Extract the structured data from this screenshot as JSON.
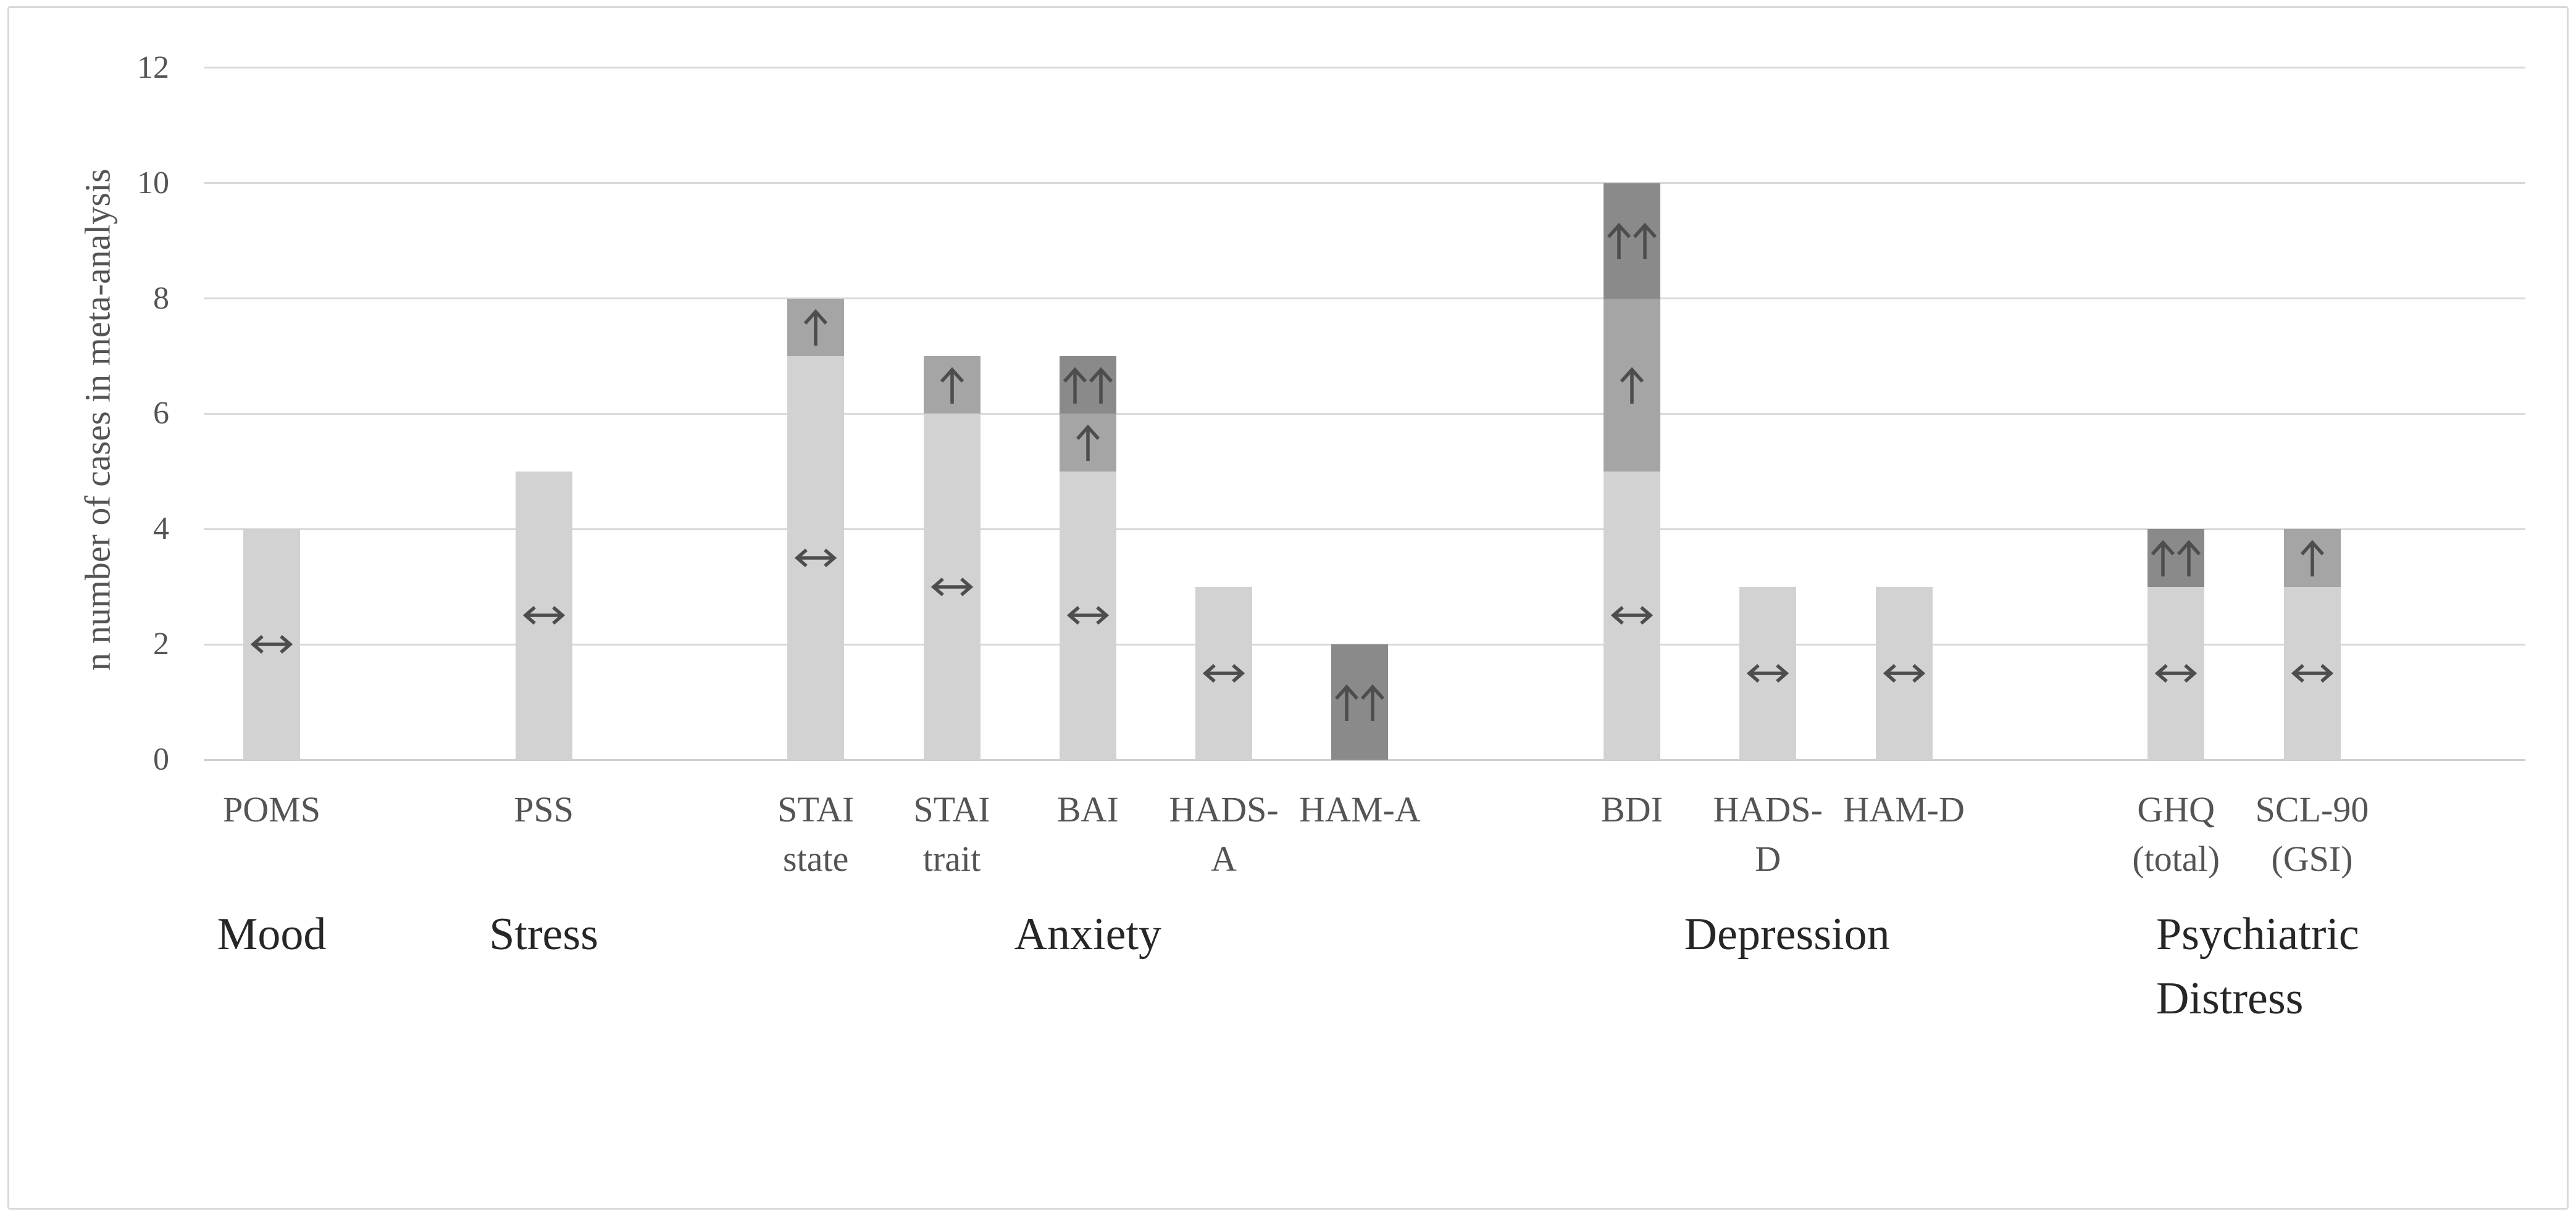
{
  "figure": {
    "background": "#ffffff",
    "border_color": "#d9d9d9"
  },
  "chart_data": {
    "type": "bar",
    "subtype": "stacked-vertical",
    "title": "",
    "xlabel": "",
    "ylabel": "n number of cases in meta-analysis",
    "ylim": [
      0,
      12
    ],
    "ytick_step": 2,
    "yticks": [
      0,
      2,
      4,
      6,
      8,
      10,
      12
    ],
    "grid": true,
    "legend_position": "none",
    "slot_count": 16,
    "levels": [
      {
        "id": "no_change",
        "symbol": "↔",
        "icon": "left-right-arrow-icon",
        "color": "#d2d2d2"
      },
      {
        "id": "increase",
        "symbol": "↑",
        "icon": "up-arrow-icon",
        "color": "#a5a5a5"
      },
      {
        "id": "strong_increase",
        "symbol": "↑↑",
        "icon": "double-up-arrow-icon",
        "color": "#8a8a8a"
      }
    ],
    "bars": [
      {
        "label": "POMS",
        "label_lines": [
          "POMS"
        ],
        "slot": 0,
        "group": "Mood",
        "segments": [
          {
            "level": "no_change",
            "value": 4,
            "symbol": "↔"
          }
        ]
      },
      {
        "label": "PSS",
        "label_lines": [
          "PSS"
        ],
        "slot": 2,
        "group": "Stress",
        "segments": [
          {
            "level": "no_change",
            "value": 5,
            "symbol": "↔"
          }
        ]
      },
      {
        "label": "STAI state",
        "label_lines": [
          "STAI",
          "state"
        ],
        "slot": 4,
        "group": "Anxiety",
        "segments": [
          {
            "level": "no_change",
            "value": 7,
            "symbol": "↔"
          },
          {
            "level": "increase",
            "value": 1,
            "symbol": "↑"
          }
        ]
      },
      {
        "label": "STAI trait",
        "label_lines": [
          "STAI",
          "trait"
        ],
        "slot": 5,
        "group": "Anxiety",
        "segments": [
          {
            "level": "no_change",
            "value": 6,
            "symbol": "↔"
          },
          {
            "level": "increase",
            "value": 1,
            "symbol": "↑"
          }
        ]
      },
      {
        "label": "BAI",
        "label_lines": [
          "BAI"
        ],
        "slot": 6,
        "group": "Anxiety",
        "segments": [
          {
            "level": "no_change",
            "value": 5,
            "symbol": "↔"
          },
          {
            "level": "increase",
            "value": 1,
            "symbol": "↑"
          },
          {
            "level": "strong_increase",
            "value": 1,
            "symbol": "↑↑"
          }
        ]
      },
      {
        "label": "HADS-A",
        "label_lines": [
          "HADS-",
          "A"
        ],
        "slot": 7,
        "group": "Anxiety",
        "segments": [
          {
            "level": "no_change",
            "value": 3,
            "symbol": "↔"
          }
        ]
      },
      {
        "label": "HAM-A",
        "label_lines": [
          "HAM-A"
        ],
        "slot": 8,
        "group": "Anxiety",
        "segments": [
          {
            "level": "strong_increase",
            "value": 2,
            "symbol": "↑↑"
          }
        ]
      },
      {
        "label": "BDI",
        "label_lines": [
          "BDI"
        ],
        "slot": 10,
        "group": "Depression",
        "segments": [
          {
            "level": "no_change",
            "value": 5,
            "symbol": "↔"
          },
          {
            "level": "increase",
            "value": 3,
            "symbol": "↑"
          },
          {
            "level": "strong_increase",
            "value": 2,
            "symbol": "↑↑"
          }
        ]
      },
      {
        "label": "HADS-D",
        "label_lines": [
          "HADS-",
          "D"
        ],
        "slot": 11,
        "group": "Depression",
        "segments": [
          {
            "level": "no_change",
            "value": 3,
            "symbol": "↔"
          }
        ]
      },
      {
        "label": "HAM-D",
        "label_lines": [
          "HAM-D"
        ],
        "slot": 12,
        "group": "Depression",
        "segments": [
          {
            "level": "no_change",
            "value": 3,
            "symbol": "↔"
          }
        ]
      },
      {
        "label": "GHQ (total)",
        "label_lines": [
          "GHQ",
          "(total)"
        ],
        "slot": 14,
        "group": "Psychiatric Distress",
        "segments": [
          {
            "level": "no_change",
            "value": 3,
            "symbol": "↔"
          },
          {
            "level": "strong_increase",
            "value": 1,
            "symbol": "↑↑"
          }
        ]
      },
      {
        "label": "SCL-90 (GSI)",
        "label_lines": [
          "SCL-90",
          "(GSI)"
        ],
        "slot": 15,
        "group": "Psychiatric Distress",
        "segments": [
          {
            "level": "no_change",
            "value": 3,
            "symbol": "↔"
          },
          {
            "level": "increase",
            "value": 1,
            "symbol": "↑"
          }
        ]
      }
    ],
    "groups": [
      {
        "label": "Mood",
        "lines": [
          "Mood"
        ],
        "center_slot": 0,
        "align": "center"
      },
      {
        "label": "Stress",
        "lines": [
          "Stress"
        ],
        "center_slot": 2,
        "align": "center"
      },
      {
        "label": "Anxiety",
        "lines": [
          "Anxiety"
        ],
        "center_slot": 6,
        "align": "center"
      },
      {
        "label": "Depression",
        "lines": [
          "Depression"
        ],
        "center_slot": 11.14,
        "align": "center"
      },
      {
        "label": "Psychiatric Distress",
        "lines": [
          "Psychiatric",
          "Distress"
        ],
        "center_slot": 14.6,
        "align": "left"
      }
    ],
    "style": {
      "gridline_color": "#d9d9d9",
      "baseline_color": "#cfcfcf",
      "tick_text_color": "#545454",
      "group_text_color": "#262626",
      "symbol_color": "#4d4d4d"
    }
  }
}
